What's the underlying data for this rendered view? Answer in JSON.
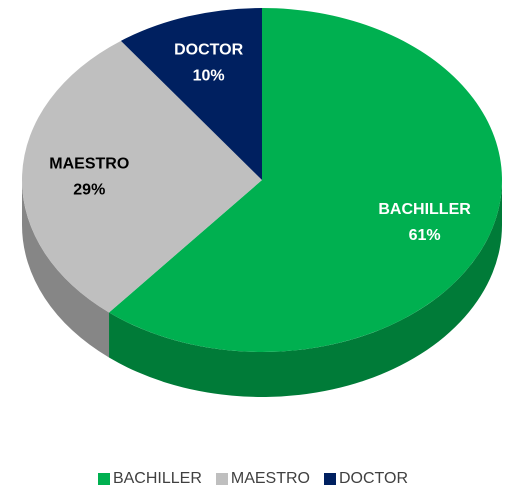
{
  "chart_data": {
    "type": "pie",
    "three_d": true,
    "categories": [
      "BACHILLER",
      "MAESTRO",
      "DOCTOR"
    ],
    "values": [
      61,
      29,
      10
    ],
    "value_labels": [
      "61%",
      "29%",
      "10%"
    ],
    "colors": [
      "#00b050",
      "#bfbfbf",
      "#002060"
    ],
    "legend": "bottom"
  }
}
